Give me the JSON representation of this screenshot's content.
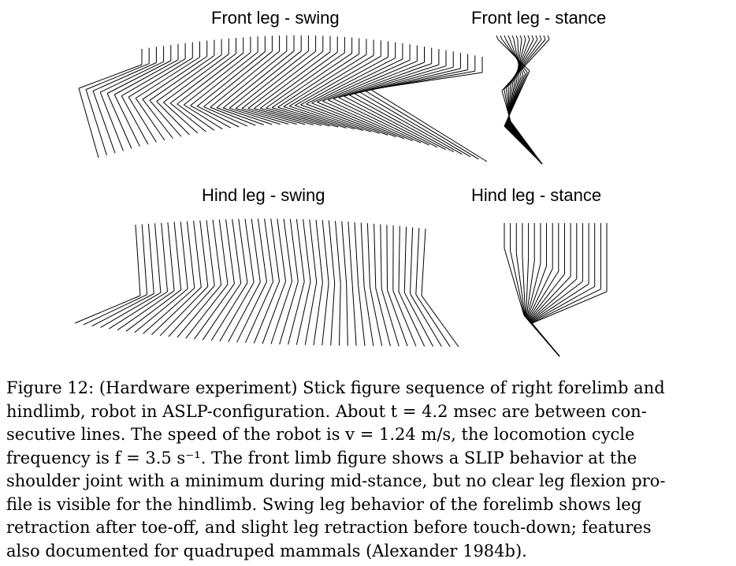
{
  "panels": {
    "front_swing": {
      "title": "Front leg - swing"
    },
    "front_stance": {
      "title": "Front leg - stance"
    },
    "hind_swing": {
      "title": "Hind leg - swing"
    },
    "hind_stance": {
      "title": "Hind leg - stance"
    }
  },
  "caption": {
    "lines": [
      "Figure 12: (Hardware experiment) Stick figure sequence of right forelimb and",
      "hindlimb, robot in ASLP-configuration. About t = 4.2 msec are between con-",
      "secutive lines. The speed of the robot is v = 1.24 m/s, the locomotion cycle",
      "frequency is f = 3.5 s⁻¹. The front limb figure shows a SLIP behavior at the",
      "shoulder joint with a minimum during mid-stance, but no clear leg flexion pro-",
      "file is visible for the hindlimb. Swing leg behavior of the forelimb shows leg",
      "retraction after toe-off, and slight leg retraction before touch-down; features",
      "also documented for quadruped mammals (Alexander 1984b)."
    ]
  }
}
